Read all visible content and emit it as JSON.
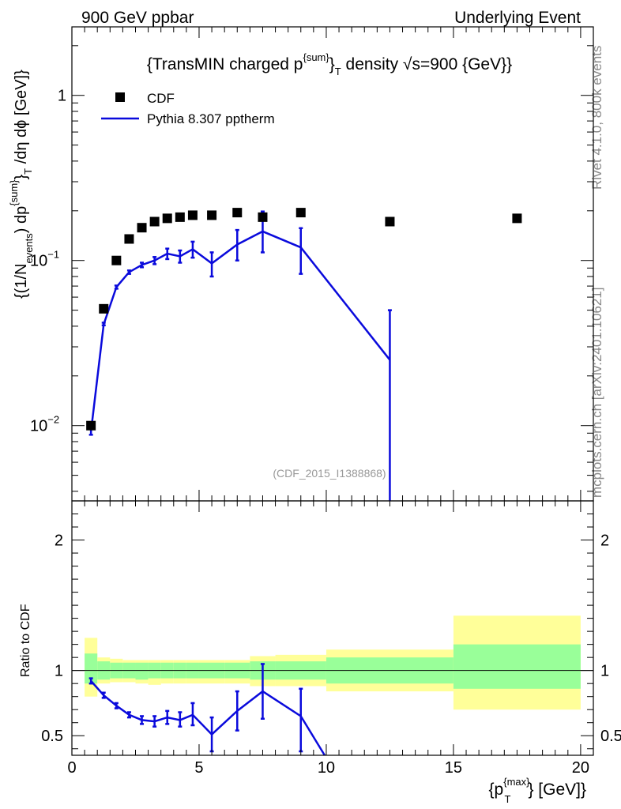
{
  "header": {
    "left": "900 GeV ppbar",
    "right": "Underlying Event"
  },
  "side_labels": {
    "rivet": "Rivet 4.1.0,  800k events",
    "mcplots": "mcplots.cern.ch [arXiv:2401.10621]"
  },
  "colors": {
    "mc": "#0a0adc",
    "data": "#000000",
    "band_inner": "#99ff99",
    "band_outer": "#ffff99"
  },
  "chart_data": [
    {
      "type": "scatter",
      "panel": "main",
      "title": "{TransMIN charged p^{sum}_T density √s=900 {GeV}}",
      "title_parts": {
        "a": "{TransMIN charged p",
        "sup": "{sum}",
        "b": "}",
        "sub": "T",
        "c": " density ",
        "root": "√",
        "d": "s=900 {GeV}}"
      },
      "ylabel": "{(1/N_{events}) dp^{sum}_T /dη  dϕ [GeV]}",
      "ylabel_parts": {
        "a": "{(1/N",
        "sub1": "events",
        "b": ") dp",
        "sup": "{sum}",
        "c": "}",
        "sub2": "T",
        "d": " /dη  dϕ [GeV]}"
      },
      "yscale": "log",
      "ylim": [
        0.0035,
        2.6
      ],
      "xlim": [
        0,
        20.5
      ],
      "yticks": [
        {
          "value": 0.01,
          "label": "10",
          "exp": "−2"
        },
        {
          "value": 0.1,
          "label": "10",
          "exp": "−1"
        },
        {
          "value": 1,
          "label": "1",
          "exp": ""
        }
      ],
      "watermark": "(CDF_2015_I1388868)",
      "legend": {
        "position": "top-left",
        "entries": [
          {
            "name": "CDF",
            "marker": "square"
          },
          {
            "name": "Pythia 8.307 pptherm",
            "marker": "line"
          }
        ]
      },
      "series": [
        {
          "name": "CDF",
          "x": [
            0.75,
            1.25,
            1.75,
            2.25,
            2.75,
            3.25,
            3.75,
            4.25,
            4.75,
            5.5,
            6.5,
            7.5,
            9.0,
            12.5,
            17.5
          ],
          "values": [
            0.01,
            0.051,
            0.1,
            0.135,
            0.158,
            0.172,
            0.18,
            0.183,
            0.188,
            0.188,
            0.195,
            0.183,
            0.195,
            0.172,
            0.18
          ]
        },
        {
          "name": "Pythia 8.307 pptherm",
          "x": [
            0.75,
            1.25,
            1.75,
            2.25,
            2.75,
            3.25,
            3.75,
            4.25,
            4.75,
            5.5,
            6.5,
            7.5,
            9.0,
            12.5
          ],
          "values": [
            0.0092,
            0.041,
            0.069,
            0.085,
            0.094,
            0.1,
            0.11,
            0.106,
            0.117,
            0.096,
            0.125,
            0.15,
            0.12,
            0.025
          ],
          "err_low": [
            0.0088,
            0.0405,
            0.0675,
            0.083,
            0.091,
            0.095,
            0.102,
            0.097,
            0.104,
            0.08,
            0.1,
            0.112,
            0.083,
            0.003
          ],
          "err_high": [
            0.0096,
            0.042,
            0.0705,
            0.087,
            0.097,
            0.105,
            0.118,
            0.115,
            0.13,
            0.112,
            0.153,
            0.198,
            0.157,
            0.05
          ]
        }
      ]
    },
    {
      "type": "line",
      "panel": "ratio",
      "ylabel": "Ratio to CDF",
      "xlabel": "{p^{max}_T} [GeV]}",
      "xlabel_parts": {
        "a": "{p",
        "sup": "{max}",
        "sub": "T",
        "b": "} [GeV]}"
      },
      "xlim": [
        0,
        20.5
      ],
      "ylim": [
        0.35,
        2.3
      ],
      "xticks": [
        0,
        5,
        10,
        15,
        20
      ],
      "yticks": [
        0.5,
        1,
        2
      ],
      "bins": [
        [
          0.5,
          1.0
        ],
        [
          1.0,
          1.5
        ],
        [
          1.5,
          2.0
        ],
        [
          2.0,
          2.5
        ],
        [
          2.5,
          3.0
        ],
        [
          3.0,
          3.5
        ],
        [
          3.5,
          4.0
        ],
        [
          4.0,
          4.5
        ],
        [
          4.5,
          5.0
        ],
        [
          5.0,
          6.0
        ],
        [
          6.0,
          7.0
        ],
        [
          7.0,
          8.0
        ],
        [
          8.0,
          10.0
        ],
        [
          10.0,
          15.0
        ],
        [
          15.0,
          20.0
        ]
      ],
      "band_inner": [
        [
          0.9,
          1.13
        ],
        [
          0.93,
          1.07
        ],
        [
          0.94,
          1.06
        ],
        [
          0.94,
          1.06
        ],
        [
          0.93,
          1.06
        ],
        [
          0.94,
          1.06
        ],
        [
          0.94,
          1.06
        ],
        [
          0.94,
          1.06
        ],
        [
          0.94,
          1.06
        ],
        [
          0.94,
          1.06
        ],
        [
          0.94,
          1.06
        ],
        [
          0.93,
          1.07
        ],
        [
          0.93,
          1.07
        ],
        [
          0.9,
          1.1
        ],
        [
          0.86,
          1.2
        ]
      ],
      "band_outer": [
        [
          0.8,
          1.25
        ],
        [
          0.9,
          1.1
        ],
        [
          0.91,
          1.09
        ],
        [
          0.91,
          1.08
        ],
        [
          0.9,
          1.08
        ],
        [
          0.89,
          1.08
        ],
        [
          0.9,
          1.08
        ],
        [
          0.9,
          1.08
        ],
        [
          0.9,
          1.08
        ],
        [
          0.9,
          1.08
        ],
        [
          0.9,
          1.08
        ],
        [
          0.88,
          1.11
        ],
        [
          0.88,
          1.12
        ],
        [
          0.84,
          1.16
        ],
        [
          0.7,
          1.42
        ]
      ],
      "series": [
        {
          "name": "Pythia 8.307 pptherm / CDF",
          "x": [
            0.75,
            1.25,
            1.75,
            2.25,
            2.75,
            3.25,
            3.75,
            4.25,
            4.75,
            5.5,
            6.5,
            7.5,
            9.0,
            10.0
          ],
          "values": [
            0.92,
            0.81,
            0.73,
            0.66,
            0.62,
            0.61,
            0.64,
            0.62,
            0.66,
            0.51,
            0.69,
            0.84,
            0.65,
            0.33
          ],
          "err_low": [
            0.9,
            0.79,
            0.71,
            0.64,
            0.59,
            0.57,
            0.59,
            0.57,
            0.58,
            0.38,
            0.54,
            0.63,
            0.38,
            null
          ],
          "err_high": [
            0.94,
            0.83,
            0.75,
            0.68,
            0.65,
            0.65,
            0.69,
            0.68,
            0.75,
            0.64,
            0.84,
            1.05,
            0.86,
            null
          ]
        }
      ]
    }
  ]
}
